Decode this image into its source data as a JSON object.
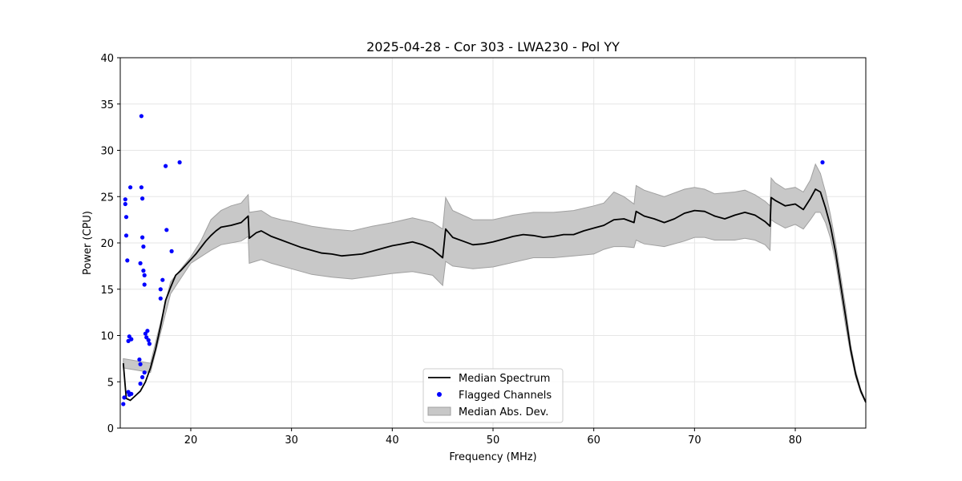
{
  "chart_data": {
    "type": "line",
    "title": "2025-04-28 - Cor 303 - LWA230 - Pol YY",
    "xlabel": "Frequency (MHz)",
    "ylabel": "Power (CPU)",
    "xlim": [
      13,
      87
    ],
    "ylim": [
      0,
      40
    ],
    "x_ticks": [
      20,
      30,
      40,
      50,
      60,
      70,
      80
    ],
    "y_ticks": [
      0,
      5,
      10,
      15,
      20,
      25,
      30,
      35,
      40
    ],
    "grid": true,
    "legend_position": "bottom-center",
    "colors": {
      "median": "#000000",
      "flagged": "#0000ff",
      "band_fill": "#c8c8c8",
      "band_edge": "#a0a0a0"
    },
    "legend": [
      "Median Spectrum",
      "Flagged Channels",
      "Median Abs. Dev."
    ],
    "series": [
      {
        "name": "Median Spectrum",
        "style": "line",
        "points": [
          [
            13.3,
            7
          ],
          [
            13.6,
            3.2
          ],
          [
            14,
            3
          ],
          [
            14.5,
            3.5
          ],
          [
            15,
            4
          ],
          [
            15.5,
            5
          ],
          [
            16,
            6.5
          ],
          [
            16.5,
            8.5
          ],
          [
            17,
            11
          ],
          [
            17.5,
            13.8
          ],
          [
            18,
            15.2
          ],
          [
            18.5,
            16.5
          ],
          [
            19,
            17
          ],
          [
            19.5,
            17.6
          ],
          [
            20,
            18.2
          ],
          [
            20.5,
            18.8
          ],
          [
            21,
            19.5
          ],
          [
            21.5,
            20.2
          ],
          [
            22,
            20.8
          ],
          [
            22.5,
            21.3
          ],
          [
            23,
            21.7
          ],
          [
            24,
            21.9
          ],
          [
            25,
            22.2
          ],
          [
            25.7,
            22.9
          ],
          [
            25.8,
            20.5
          ],
          [
            26.5,
            21.1
          ],
          [
            27,
            21.3
          ],
          [
            28,
            20.7
          ],
          [
            29,
            20.3
          ],
          [
            30,
            19.9
          ],
          [
            31,
            19.5
          ],
          [
            32,
            19.2
          ],
          [
            33,
            18.9
          ],
          [
            34,
            18.8
          ],
          [
            35,
            18.6
          ],
          [
            36,
            18.7
          ],
          [
            37,
            18.8
          ],
          [
            38,
            19.1
          ],
          [
            39,
            19.4
          ],
          [
            40,
            19.7
          ],
          [
            41,
            19.9
          ],
          [
            42,
            20.1
          ],
          [
            43,
            19.8
          ],
          [
            44,
            19.3
          ],
          [
            45,
            18.4
          ],
          [
            45.3,
            21.5
          ],
          [
            46,
            20.6
          ],
          [
            47,
            20.2
          ],
          [
            48,
            19.8
          ],
          [
            49,
            19.9
          ],
          [
            50,
            20.1
          ],
          [
            51,
            20.4
          ],
          [
            52,
            20.7
          ],
          [
            53,
            20.9
          ],
          [
            54,
            20.8
          ],
          [
            55,
            20.6
          ],
          [
            56,
            20.7
          ],
          [
            57,
            20.9
          ],
          [
            58,
            20.9
          ],
          [
            59,
            21.3
          ],
          [
            60,
            21.6
          ],
          [
            61,
            21.9
          ],
          [
            62,
            22.5
          ],
          [
            63,
            22.6
          ],
          [
            64,
            22.2
          ],
          [
            64.2,
            23.4
          ],
          [
            65,
            22.9
          ],
          [
            66,
            22.6
          ],
          [
            67,
            22.2
          ],
          [
            68,
            22.6
          ],
          [
            69,
            23.2
          ],
          [
            70,
            23.5
          ],
          [
            71,
            23.4
          ],
          [
            72,
            22.9
          ],
          [
            73,
            22.6
          ],
          [
            74,
            23.0
          ],
          [
            75,
            23.3
          ],
          [
            76,
            23.0
          ],
          [
            77,
            22.3
          ],
          [
            77.5,
            21.8
          ],
          [
            77.6,
            24.9
          ],
          [
            78,
            24.6
          ],
          [
            79,
            24.0
          ],
          [
            80,
            24.2
          ],
          [
            80.8,
            23.6
          ],
          [
            81.5,
            24.8
          ],
          [
            82,
            25.8
          ],
          [
            82.5,
            25.5
          ],
          [
            83,
            23.8
          ],
          [
            83.5,
            21.8
          ],
          [
            84,
            19
          ],
          [
            84.5,
            15.5
          ],
          [
            85,
            12
          ],
          [
            85.5,
            8.5
          ],
          [
            86,
            5.8
          ],
          [
            86.5,
            4
          ],
          [
            87,
            2.8
          ]
        ]
      },
      {
        "name": "Flagged Channels",
        "style": "scatter",
        "points": [
          [
            13.3,
            2.6
          ],
          [
            13.4,
            3.3
          ],
          [
            13.5,
            24.7
          ],
          [
            13.5,
            24.2
          ],
          [
            13.6,
            22.8
          ],
          [
            13.6,
            20.8
          ],
          [
            13.7,
            18.1
          ],
          [
            13.8,
            9.4
          ],
          [
            13.8,
            3.9
          ],
          [
            13.9,
            3.6
          ],
          [
            13.9,
            9.9
          ],
          [
            14.0,
            26
          ],
          [
            14.1,
            9.6
          ],
          [
            14.1,
            3.7
          ],
          [
            14.9,
            7.4
          ],
          [
            15.0,
            6.9
          ],
          [
            15.0,
            17.8
          ],
          [
            15.1,
            33.7
          ],
          [
            15.1,
            26
          ],
          [
            15.2,
            24.8
          ],
          [
            15.2,
            20.6
          ],
          [
            15.3,
            19.6
          ],
          [
            15.3,
            17.0
          ],
          [
            15.4,
            16.5
          ],
          [
            15.4,
            15.5
          ],
          [
            15.5,
            10.2
          ],
          [
            15.6,
            9.8
          ],
          [
            15.7,
            10.5
          ],
          [
            15.8,
            9.5
          ],
          [
            15.9,
            9.1
          ],
          [
            15.0,
            4.8
          ],
          [
            15.2,
            5.5
          ],
          [
            15.4,
            6.0
          ],
          [
            17.0,
            14
          ],
          [
            17.0,
            15
          ],
          [
            17.2,
            16
          ],
          [
            17.5,
            28.3
          ],
          [
            17.6,
            21.4
          ],
          [
            18.1,
            19.1
          ],
          [
            18.9,
            28.7
          ],
          [
            82.7,
            28.7
          ]
        ]
      },
      {
        "name": "Median Abs. Dev.",
        "style": "band",
        "x": [
          13.3,
          16,
          18,
          20,
          21,
          22,
          23,
          24,
          25,
          25.7,
          25.8,
          27,
          28,
          29,
          30,
          32,
          34,
          36,
          38,
          40,
          42,
          44,
          45,
          45.3,
          46,
          48,
          50,
          52,
          54,
          56,
          58,
          60,
          61,
          62,
          63,
          64,
          64.2,
          65,
          67,
          69,
          70,
          71,
          72,
          74,
          75,
          76,
          77,
          77.5,
          77.6,
          78,
          79,
          80,
          80.8,
          81.5,
          82,
          82.5,
          83,
          83.5,
          84,
          84.5,
          85,
          85.5,
          86,
          86.5,
          87
        ],
        "upper": [
          7.5,
          7,
          15.8,
          18.5,
          20.2,
          22.5,
          23.5,
          24,
          24.3,
          25.2,
          23.3,
          23.5,
          22.8,
          22.5,
          22.3,
          21.8,
          21.5,
          21.3,
          21.8,
          22.2,
          22.7,
          22.2,
          21.5,
          24.9,
          23.5,
          22.5,
          22.5,
          23,
          23.3,
          23.3,
          23.5,
          24,
          24.3,
          25.5,
          25,
          24.2,
          26.2,
          25.7,
          25,
          25.8,
          26,
          25.8,
          25.3,
          25.5,
          25.7,
          25.2,
          24.5,
          24,
          27,
          26.5,
          25.8,
          26,
          25.5,
          26.8,
          28.5,
          27.5,
          25.5,
          23,
          20,
          16.5,
          13,
          9,
          6.2,
          4.2,
          2.9
        ],
        "lower": [
          6.5,
          6,
          14.5,
          17.8,
          18.5,
          19.2,
          19.8,
          20,
          20.2,
          20.7,
          17.8,
          18.2,
          17.8,
          17.5,
          17.2,
          16.6,
          16.3,
          16.1,
          16.4,
          16.7,
          16.9,
          16.5,
          15.4,
          18,
          17.5,
          17.2,
          17.4,
          17.9,
          18.4,
          18.4,
          18.6,
          18.8,
          19.3,
          19.6,
          19.6,
          19.5,
          20.3,
          19.9,
          19.6,
          20.2,
          20.6,
          20.6,
          20.3,
          20.3,
          20.5,
          20.3,
          19.8,
          19.2,
          22.5,
          22.2,
          21.6,
          22,
          21.5,
          22.5,
          23.3,
          23.3,
          22.2,
          20.5,
          18,
          14.5,
          11,
          8,
          5.5,
          3.8,
          2.7
        ]
      }
    ]
  }
}
